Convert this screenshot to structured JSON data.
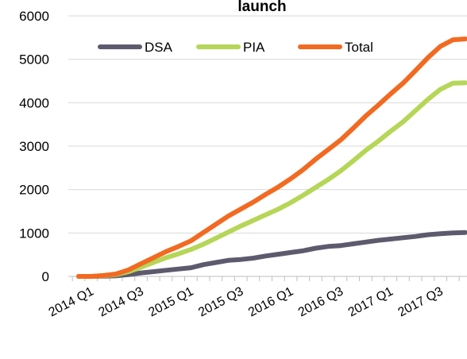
{
  "chart_data": {
    "type": "line",
    "title": "launch",
    "xlabel": "",
    "ylabel": "",
    "ylim": [
      0,
      6000
    ],
    "yticks": [
      0,
      1000,
      2000,
      3000,
      4000,
      5000,
      6000
    ],
    "grid": true,
    "legend_position": "top",
    "x_tick_labels": [
      "2014 Q1",
      "2014 Q3",
      "2015 Q1",
      "2015 Q3",
      "2016 Q1",
      "2016 Q3",
      "2017 Q1",
      "2017 Q3"
    ],
    "x": [
      "2014 Q1",
      "",
      "",
      "",
      "2014 Q3",
      "",
      "",
      "",
      "2015 Q1",
      "",
      "",
      "",
      "2015 Q3",
      "",
      "",
      "",
      "2016 Q1",
      "",
      "",
      "",
      "2016 Q3",
      "",
      "",
      "",
      "2017 Q1",
      "",
      "",
      "",
      "2017 Q3",
      "",
      "",
      ""
    ],
    "series": [
      {
        "name": "DSA",
        "color": "#5e5a6e",
        "values": [
          0,
          0,
          5,
          15,
          40,
          80,
          110,
          140,
          170,
          200,
          270,
          320,
          370,
          390,
          420,
          470,
          510,
          550,
          590,
          650,
          690,
          710,
          750,
          790,
          830,
          860,
          890,
          920,
          960,
          985,
          1000,
          1010
        ]
      },
      {
        "name": "PIA",
        "color": "#b5d657",
        "values": [
          0,
          0,
          15,
          40,
          110,
          210,
          320,
          430,
          520,
          620,
          740,
          880,
          1020,
          1160,
          1290,
          1420,
          1550,
          1700,
          1870,
          2050,
          2230,
          2430,
          2660,
          2900,
          3110,
          3340,
          3560,
          3820,
          4080,
          4310,
          4450,
          4460
        ]
      },
      {
        "name": "Total",
        "color": "#f26a21",
        "values": [
          0,
          0,
          20,
          55,
          150,
          290,
          430,
          570,
          690,
          820,
          1010,
          1200,
          1390,
          1550,
          1710,
          1890,
          2060,
          2250,
          2460,
          2700,
          2920,
          3140,
          3410,
          3690,
          3940,
          4200,
          4450,
          4740,
          5040,
          5300,
          5450,
          5470
        ]
      }
    ]
  }
}
